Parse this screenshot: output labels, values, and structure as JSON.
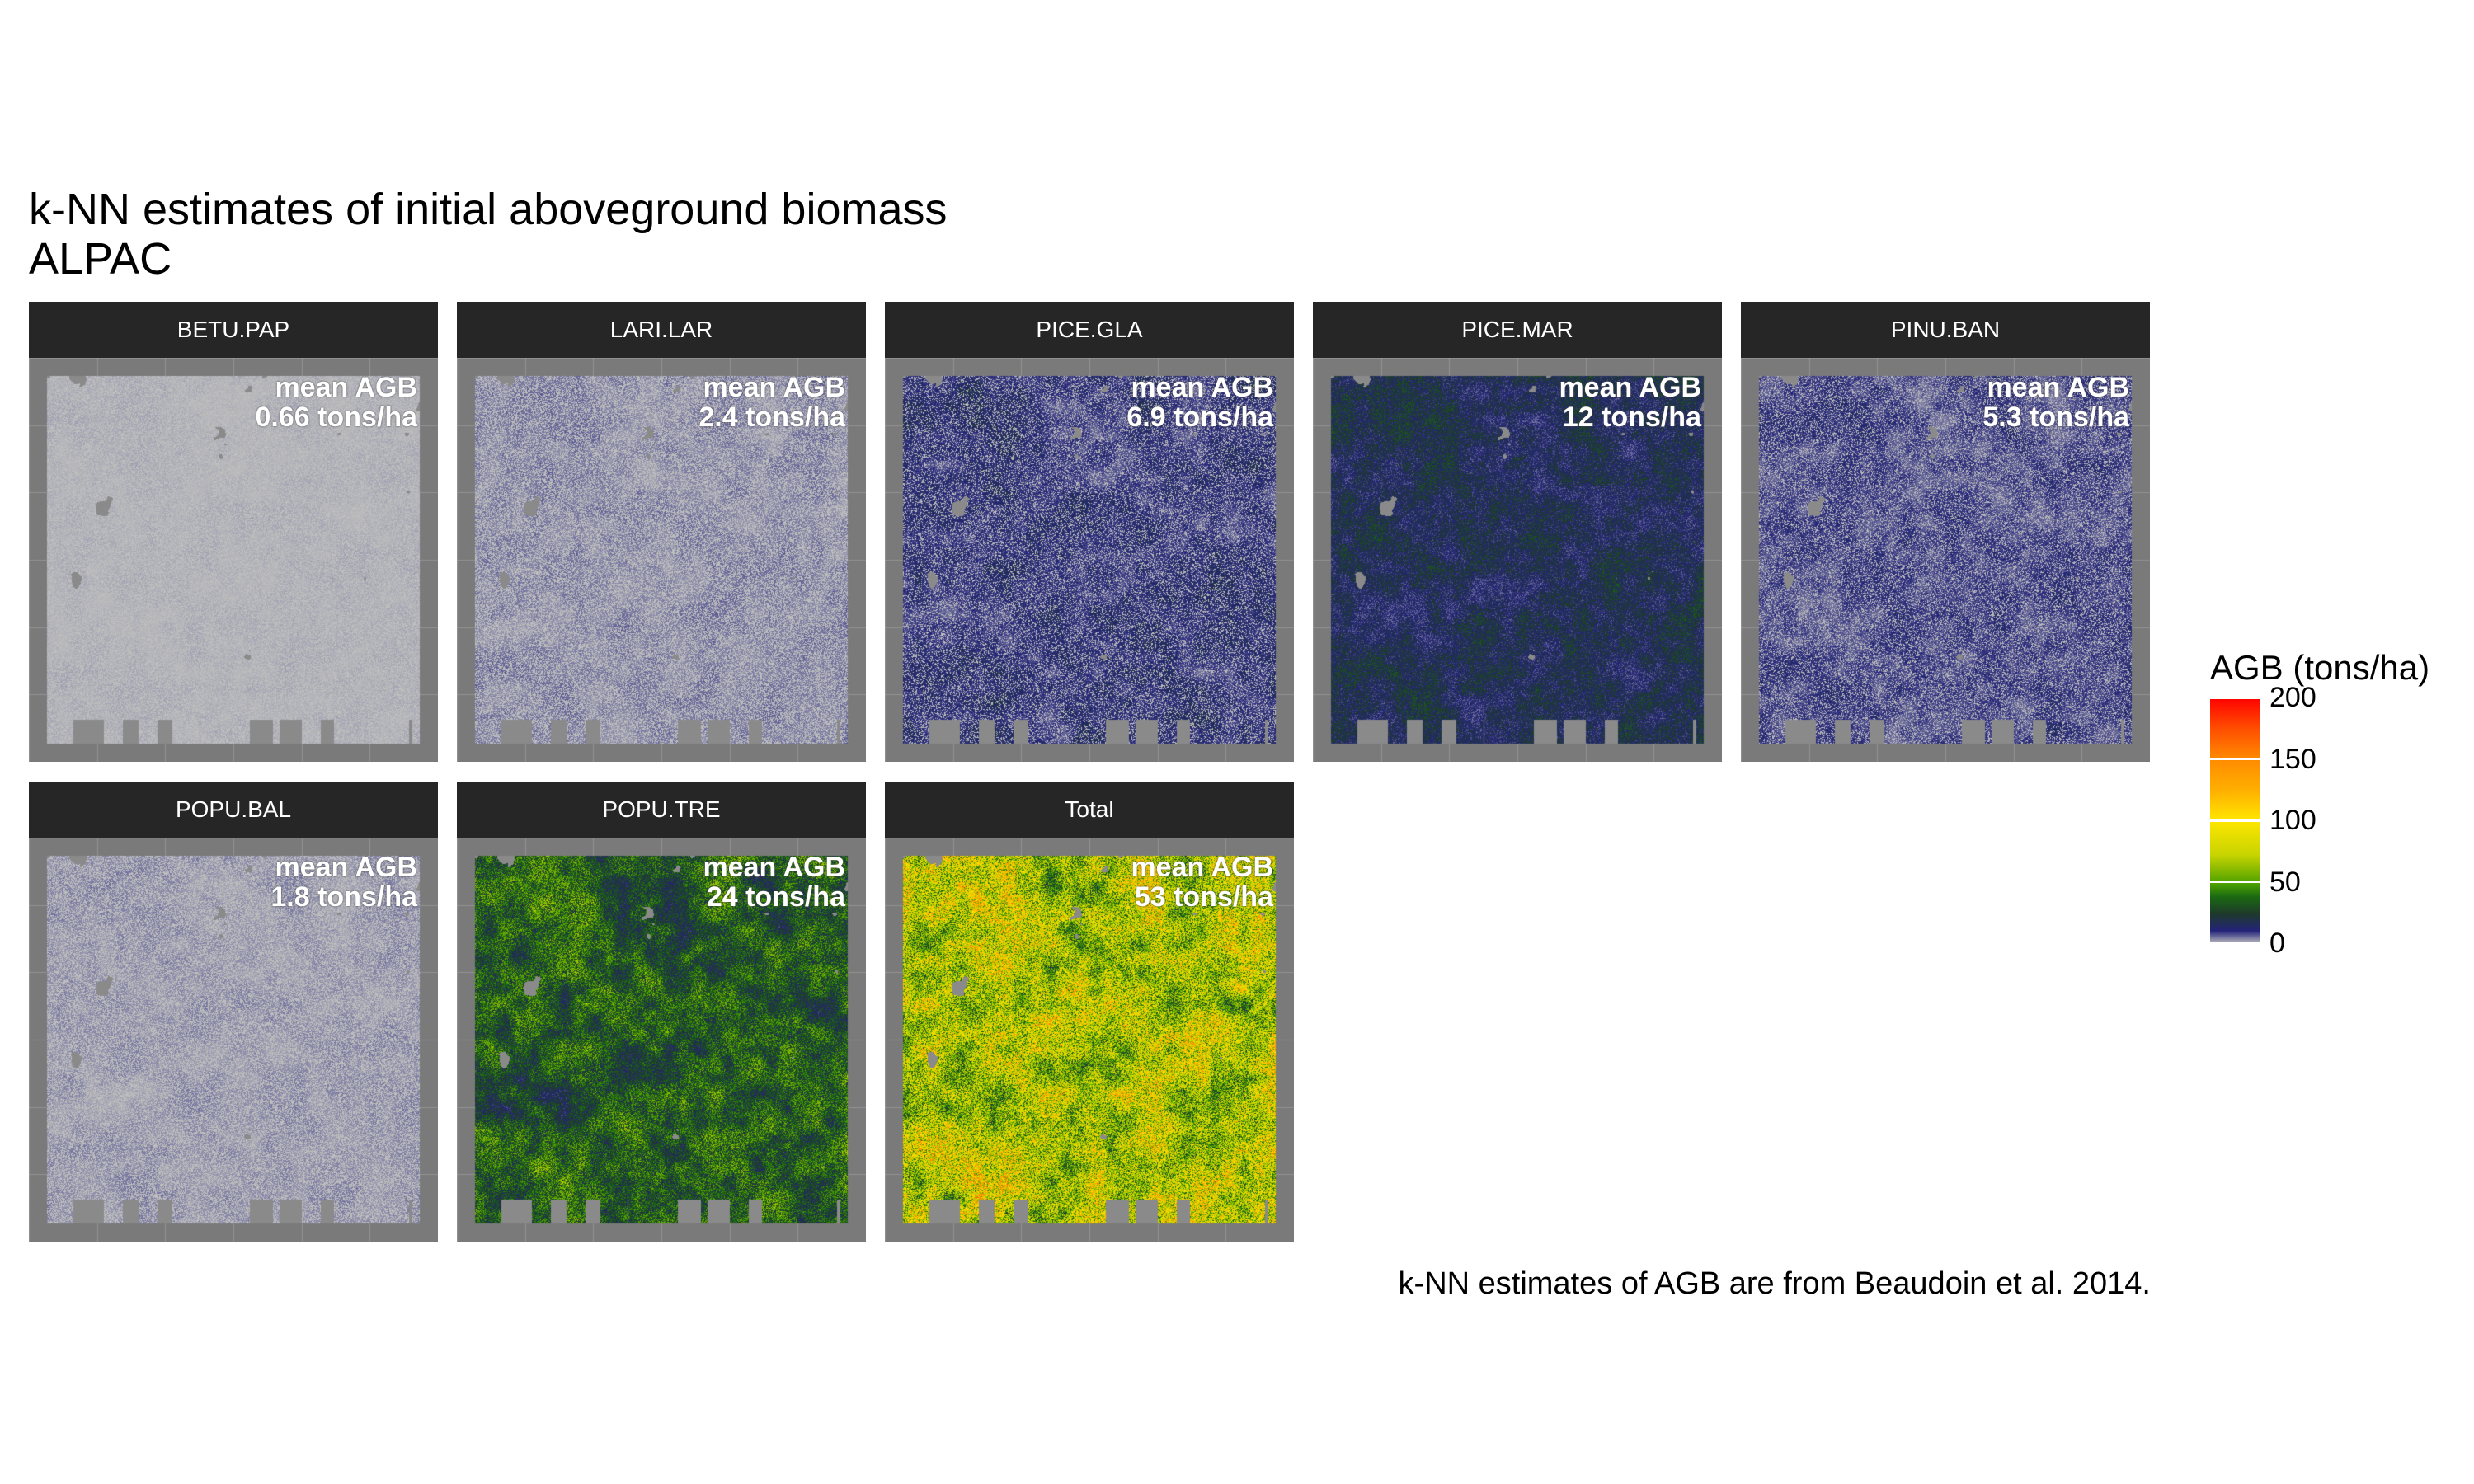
{
  "title": {
    "line1": "k-NN estimates of initial aboveground biomass",
    "line2": "ALPAC"
  },
  "panels": [
    {
      "name": "BETU.PAP",
      "anno_label": "mean AGB",
      "anno_value": "0.66 tons/ha",
      "mean_agb": 0.66
    },
    {
      "name": "LARI.LAR",
      "anno_label": "mean AGB",
      "anno_value": "2.4 tons/ha",
      "mean_agb": 2.4
    },
    {
      "name": "PICE.GLA",
      "anno_label": "mean AGB",
      "anno_value": "6.9 tons/ha",
      "mean_agb": 6.9
    },
    {
      "name": "PICE.MAR",
      "anno_label": "mean AGB",
      "anno_value": "12 tons/ha",
      "mean_agb": 12
    },
    {
      "name": "PINU.BAN",
      "anno_label": "mean AGB",
      "anno_value": "5.3 tons/ha",
      "mean_agb": 5.3
    },
    {
      "name": "POPU.BAL",
      "anno_label": "mean AGB",
      "anno_value": "1.8 tons/ha",
      "mean_agb": 1.8
    },
    {
      "name": "POPU.TRE",
      "anno_label": "mean AGB",
      "anno_value": "24 tons/ha",
      "mean_agb": 24
    },
    {
      "name": "Total",
      "anno_label": "mean AGB",
      "anno_value": "53 tons/ha",
      "mean_agb": 53
    }
  ],
  "legend": {
    "title": "AGB (tons/ha)",
    "ticks": [
      {
        "label": "200",
        "value": 200
      },
      {
        "label": "150",
        "value": 150
      },
      {
        "label": "100",
        "value": 100
      },
      {
        "label": "50",
        "value": 50
      },
      {
        "label": "0",
        "value": 0
      }
    ],
    "range": [
      0,
      200
    ],
    "colors": [
      "#bdbdbd",
      "#23237a",
      "#1b6a12",
      "#ffe600",
      "#ff8a00",
      "#ff0000"
    ]
  },
  "caption": "k-NN estimates of AGB are from Beaudoin et al. 2014.",
  "colors": {
    "strip_bg": "#262626",
    "panel_bg": "#7a7a7a",
    "no_data": "#8a8a8a",
    "water": "#8a8a8a"
  }
}
